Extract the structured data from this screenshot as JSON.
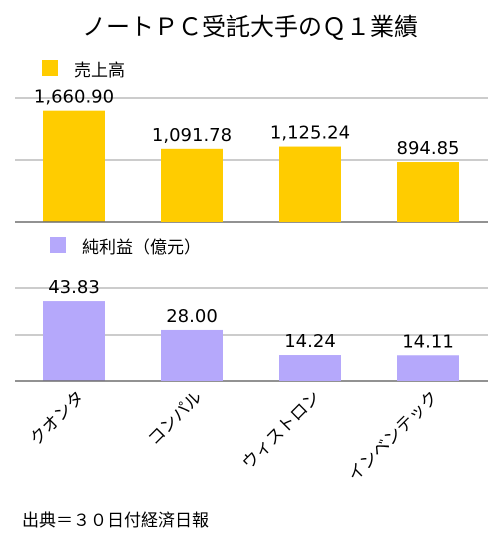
{
  "title": "ノートＰＣ受託大手のＱ１業績",
  "source": "出典＝３０日付経済日報",
  "chart_data": [
    {
      "type": "bar",
      "legend": "売上高",
      "color": "#FFCC00",
      "categories": [
        "クオンタ",
        "コンパル",
        "ウィストロン",
        "インベンテック"
      ],
      "values": [
        1660.9,
        1091.78,
        1125.24,
        894.85
      ],
      "value_labels": [
        "1,660.90",
        "1,091.78",
        "1,125.24",
        "894.85"
      ],
      "ylim": [
        0,
        1850
      ],
      "grid": true
    },
    {
      "type": "bar",
      "legend": "純利益（億元）",
      "color": "#B5A8FB",
      "categories": [
        "クオンタ",
        "コンパル",
        "ウィストロン",
        "インベンテック"
      ],
      "values": [
        43.83,
        28.0,
        14.24,
        14.11
      ],
      "value_labels": [
        "43.83",
        "28.00",
        "14.24",
        "14.11"
      ],
      "ylim": [
        0,
        51
      ],
      "grid": true
    }
  ]
}
